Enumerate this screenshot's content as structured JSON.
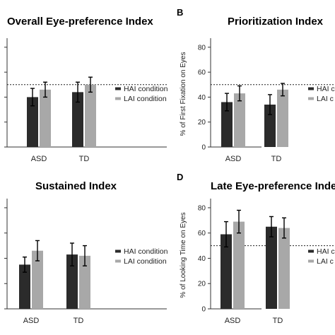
{
  "chart_data": [
    {
      "type": "bar",
      "letter": "",
      "title": "Overall Eye-preference Index",
      "ylabel": "",
      "categories": [
        "ASD",
        "TD"
      ],
      "series": [
        {
          "name": "HAI condition",
          "color": "#2b2b2b",
          "values": [
            40,
            44
          ],
          "errors": [
            7,
            8
          ]
        },
        {
          "name": "LAI condition",
          "color": "#a8a8a8",
          "values": [
            46,
            50
          ],
          "errors": [
            6,
            6
          ]
        }
      ],
      "ylim": [
        0,
        85
      ],
      "yticks": [],
      "reference_line": 50,
      "legend": "right"
    },
    {
      "type": "bar",
      "letter": "B",
      "title": "Prioritization Index",
      "ylabel": "% of First Fixation on Eyes",
      "categories": [
        "ASD",
        "TD"
      ],
      "series": [
        {
          "name": "HAI c",
          "color": "#2b2b2b",
          "values": [
            36,
            34
          ],
          "errors": [
            7,
            8
          ]
        },
        {
          "name": "LAI c",
          "color": "#a8a8a8",
          "values": [
            43,
            46
          ],
          "errors": [
            6,
            5
          ]
        }
      ],
      "ylim": [
        0,
        85
      ],
      "yticks": [
        "0",
        "20",
        "40",
        "60",
        "80"
      ],
      "reference_line": 50,
      "legend": "right"
    },
    {
      "type": "bar",
      "letter": "",
      "title": "Sustained Index",
      "ylabel": "",
      "categories": [
        "ASD",
        "TD"
      ],
      "series": [
        {
          "name": "HAI condition",
          "color": "#2b2b2b",
          "values": [
            35,
            43
          ],
          "errors": [
            6,
            9
          ]
        },
        {
          "name": "LAI condition",
          "color": "#a8a8a8",
          "values": [
            46,
            42
          ],
          "errors": [
            8,
            8
          ]
        }
      ],
      "ylim": [
        0,
        85
      ],
      "yticks": [],
      "reference_line": null,
      "legend": "right"
    },
    {
      "type": "bar",
      "letter": "D",
      "title": "Late Eye-preference Index",
      "ylabel": "% of Looking Time on Eyes",
      "categories": [
        "ASD",
        "TD"
      ],
      "series": [
        {
          "name": "HAI c",
          "color": "#2b2b2b",
          "values": [
            59,
            65
          ],
          "errors": [
            10,
            8
          ]
        },
        {
          "name": "LAI c",
          "color": "#a8a8a8",
          "values": [
            69,
            64
          ],
          "errors": [
            9,
            8
          ]
        }
      ],
      "ylim": [
        0,
        85
      ],
      "yticks": [
        "0",
        "20",
        "40",
        "60",
        "80"
      ],
      "reference_line": 50,
      "legend": "right"
    }
  ]
}
